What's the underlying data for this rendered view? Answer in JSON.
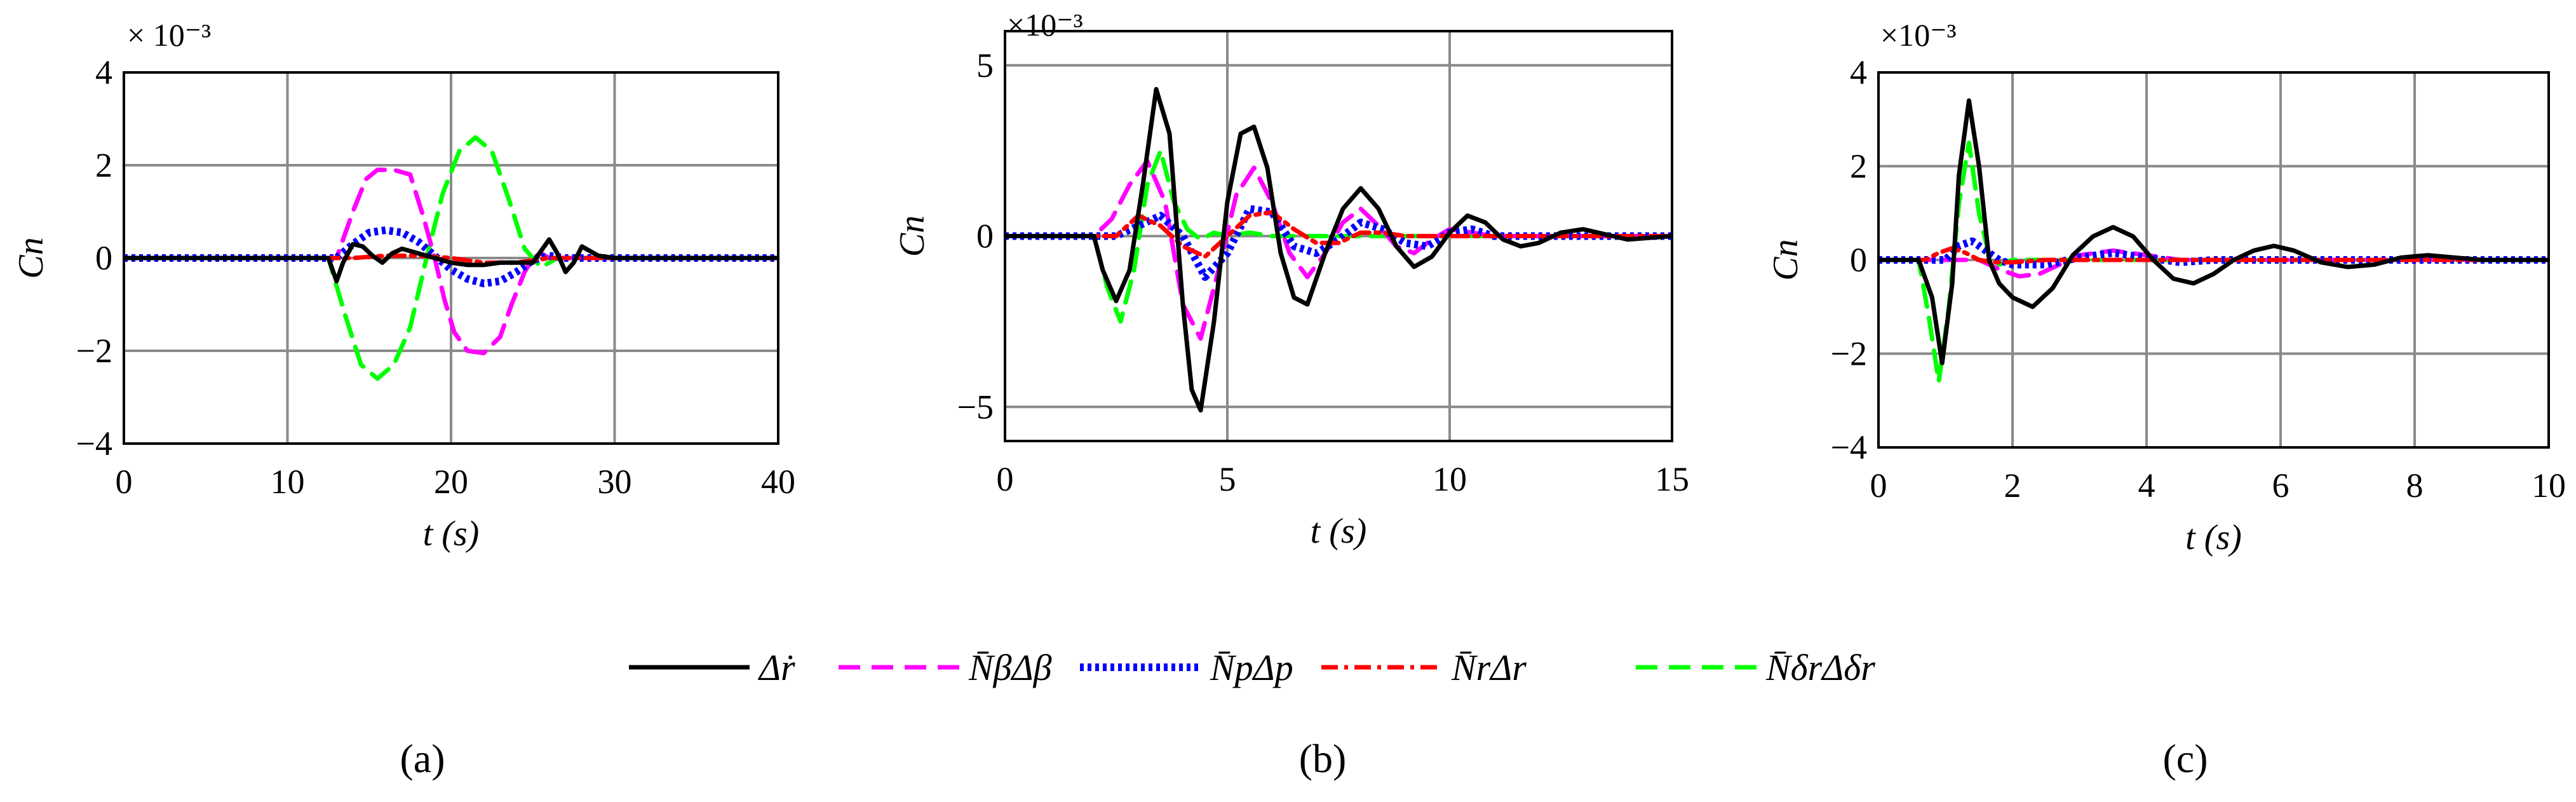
{
  "figure": {
    "legend": [
      {
        "label": "Δṙ",
        "color": "#000000",
        "dash": "solid"
      },
      {
        "label": "N̄βΔβ",
        "color": "#ff00ff",
        "dash": "dash"
      },
      {
        "label": "N̄pΔp",
        "color": "#0000ff",
        "dash": "dot"
      },
      {
        "label": "N̄rΔr",
        "color": "#ff0000",
        "dash": "dashdot"
      },
      {
        "label": "N̄δrΔδr",
        "color": "#00ff00",
        "dash": "dash"
      }
    ]
  },
  "chart_data": [
    {
      "type": "line",
      "panel_label": "(a)",
      "exponent_label": "× 10⁻³",
      "xlabel": "t (s)",
      "ylabel": "Cn",
      "xlim": [
        0,
        40
      ],
      "ylim": [
        -4,
        4
      ],
      "xticks": [
        0,
        10,
        20,
        30,
        40
      ],
      "yticks": [
        -4,
        -2,
        0,
        2,
        4
      ],
      "grid": true,
      "series": [
        {
          "name": "Δṙ",
          "x": [
            0,
            12.5,
            13.0,
            13.4,
            14.0,
            14.6,
            15.2,
            15.8,
            16.4,
            17.0,
            18.0,
            19.0,
            20.0,
            21.0,
            22.0,
            23.0,
            24.0,
            25.0,
            25.5,
            26.0,
            26.5,
            27.0,
            27.5,
            28.0,
            29.0,
            30.0,
            40
          ],
          "y": [
            0,
            0,
            -0.5,
            -0.1,
            0.3,
            0.25,
            0.05,
            -0.1,
            0.1,
            0.2,
            0.1,
            0,
            -0.1,
            -0.15,
            -0.15,
            -0.1,
            -0.1,
            -0.1,
            0.15,
            0.4,
            0.1,
            -0.3,
            -0.1,
            0.25,
            0.05,
            0,
            0
          ]
        },
        {
          "name": "N̄βΔβ",
          "x": [
            0,
            13.0,
            14.0,
            14.8,
            15.5,
            16.5,
            17.5,
            18.3,
            19.0,
            19.6,
            20.2,
            21.0,
            22.0,
            23.0,
            23.7,
            24.5,
            25.0,
            25.5,
            26.0,
            40
          ],
          "y": [
            0,
            0,
            1.0,
            1.7,
            1.9,
            1.9,
            1.8,
            0.9,
            0,
            -0.9,
            -1.6,
            -2.0,
            -2.05,
            -1.7,
            -1.0,
            -0.3,
            0.0,
            0.1,
            0,
            0
          ]
        },
        {
          "name": "N̄pΔp",
          "x": [
            0,
            13.0,
            14.0,
            15.0,
            16.0,
            17.0,
            18.0,
            19.0,
            20.0,
            21.0,
            22.0,
            23.0,
            24.0,
            25.0,
            26.0,
            27.0,
            40
          ],
          "y": [
            0,
            0,
            0.3,
            0.55,
            0.6,
            0.55,
            0.35,
            0.05,
            -0.25,
            -0.45,
            -0.55,
            -0.5,
            -0.3,
            -0.05,
            0.05,
            0,
            0
          ]
        },
        {
          "name": "N̄rΔr",
          "x": [
            0,
            14.0,
            16.0,
            18.0,
            20.0,
            22.0,
            24.0,
            26.0,
            28.0,
            40
          ],
          "y": [
            0,
            0,
            0.05,
            0.05,
            0,
            -0.1,
            -0.1,
            0,
            0,
            0
          ]
        },
        {
          "name": "N̄δrΔδr",
          "x": [
            0,
            12.5,
            13.5,
            14.5,
            15.5,
            16.5,
            17.5,
            18.5,
            19.5,
            20.5,
            21.5,
            22.5,
            23.5,
            24.5,
            25.5,
            26.5,
            40
          ],
          "y": [
            0,
            0,
            -1.2,
            -2.3,
            -2.6,
            -2.3,
            -1.5,
            0,
            1.4,
            2.3,
            2.6,
            2.3,
            1.3,
            0.2,
            -0.2,
            0,
            0
          ]
        }
      ]
    },
    {
      "type": "line",
      "panel_label": "(b)",
      "exponent_label": "×10⁻³",
      "xlabel": "t (s)",
      "ylabel": "Cn",
      "xlim": [
        0,
        15
      ],
      "ylim": [
        -6,
        6
      ],
      "xticks": [
        0,
        5,
        10,
        15
      ],
      "yticks": [
        -5,
        0,
        5
      ],
      "grid": true,
      "series": [
        {
          "name": "Δṙ",
          "x": [
            0,
            2.0,
            2.2,
            2.5,
            2.8,
            3.1,
            3.4,
            3.7,
            4.0,
            4.2,
            4.4,
            4.7,
            5.0,
            5.3,
            5.6,
            5.9,
            6.2,
            6.5,
            6.8,
            7.2,
            7.6,
            8.0,
            8.4,
            8.8,
            9.2,
            9.6,
            10.0,
            10.4,
            10.8,
            11.2,
            11.6,
            12.0,
            12.5,
            13.0,
            13.5,
            14.0,
            15.0
          ],
          "y": [
            0,
            0,
            -1.0,
            -1.9,
            -1.0,
            1.5,
            4.3,
            3.0,
            -2.0,
            -4.5,
            -5.1,
            -2.5,
            1.0,
            3.0,
            3.2,
            2.0,
            -0.5,
            -1.8,
            -2.0,
            -0.5,
            0.8,
            1.4,
            0.8,
            -0.3,
            -0.9,
            -0.6,
            0.1,
            0.6,
            0.4,
            -0.1,
            -0.3,
            -0.2,
            0.1,
            0.2,
            0.05,
            -0.1,
            0
          ]
        },
        {
          "name": "N̄βΔβ",
          "x": [
            0,
            2.0,
            2.4,
            2.8,
            3.2,
            3.6,
            4.0,
            4.4,
            4.8,
            5.2,
            5.6,
            6.0,
            6.4,
            6.8,
            7.2,
            7.6,
            8.0,
            8.4,
            8.8,
            9.2,
            9.6,
            10.0,
            10.5,
            11.0,
            15.0
          ],
          "y": [
            0,
            0,
            0.5,
            1.5,
            2.2,
            1.0,
            -2.0,
            -3.0,
            -1.0,
            1.2,
            2.0,
            1.0,
            -0.5,
            -1.2,
            -0.5,
            0.4,
            0.8,
            0.3,
            -0.3,
            -0.5,
            -0.1,
            0.2,
            0.1,
            0,
            0
          ]
        },
        {
          "name": "N̄pΔp",
          "x": [
            0,
            2.5,
            3.0,
            3.5,
            4.0,
            4.5,
            5.0,
            5.5,
            6.0,
            6.5,
            7.0,
            7.5,
            8.0,
            8.5,
            9.0,
            9.5,
            10.0,
            10.5,
            11.0,
            15.0
          ],
          "y": [
            0,
            0,
            0.3,
            0.6,
            0,
            -1.2,
            -0.5,
            0.8,
            0.7,
            -0.3,
            -0.5,
            -0.1,
            0.4,
            0.2,
            -0.2,
            -0.3,
            0.1,
            0.2,
            0,
            0
          ]
        },
        {
          "name": "N̄rΔr",
          "x": [
            0,
            2.5,
            3.0,
            3.5,
            4.0,
            4.5,
            5.0,
            5.5,
            6.0,
            6.5,
            7.0,
            7.5,
            8.0,
            8.5,
            9.0,
            10.0,
            15.0
          ],
          "y": [
            0,
            0,
            0.6,
            0.3,
            -0.3,
            -0.6,
            0,
            0.6,
            0.7,
            0.2,
            -0.2,
            -0.2,
            0.1,
            0.1,
            0,
            0,
            0
          ]
        },
        {
          "name": "N̄δrΔδr",
          "x": [
            0,
            2.0,
            2.3,
            2.6,
            2.9,
            3.2,
            3.5,
            3.8,
            4.1,
            4.4,
            4.7,
            5.0,
            5.5,
            6.0,
            6.5,
            7.0,
            15.0
          ],
          "y": [
            0,
            0,
            -1.5,
            -2.5,
            -1.0,
            1.5,
            2.5,
            1.0,
            0.2,
            -0.1,
            0.1,
            0,
            0.1,
            0,
            0,
            0,
            0
          ]
        }
      ]
    },
    {
      "type": "line",
      "panel_label": "(c)",
      "exponent_label": "×10⁻³",
      "xlabel": "t (s)",
      "ylabel": "Cn",
      "xlim": [
        0,
        10
      ],
      "ylim": [
        -4,
        4
      ],
      "xticks": [
        0,
        2,
        4,
        6,
        8,
        10
      ],
      "yticks": [
        -4,
        -2,
        0,
        2,
        4
      ],
      "grid": true,
      "series": [
        {
          "name": "Δṙ",
          "x": [
            0,
            0.6,
            0.8,
            0.95,
            1.1,
            1.2,
            1.35,
            1.5,
            1.65,
            1.8,
            2.0,
            2.3,
            2.6,
            2.9,
            3.2,
            3.5,
            3.8,
            4.1,
            4.4,
            4.7,
            5.0,
            5.3,
            5.6,
            5.9,
            6.2,
            6.6,
            7.0,
            7.4,
            7.8,
            8.2,
            8.6,
            9.0,
            9.5,
            10.0
          ],
          "y": [
            0,
            0,
            -0.8,
            -2.2,
            -0.5,
            1.8,
            3.4,
            2.0,
            0,
            -0.5,
            -0.8,
            -1.0,
            -0.6,
            0.1,
            0.5,
            0.7,
            0.5,
            0,
            -0.4,
            -0.5,
            -0.3,
            0,
            0.2,
            0.3,
            0.2,
            -0.05,
            -0.15,
            -0.1,
            0.05,
            0.1,
            0.05,
            0,
            0,
            0
          ]
        },
        {
          "name": "N̄βΔβ",
          "x": [
            0,
            1.5,
            1.8,
            2.1,
            2.4,
            2.7,
            3.0,
            3.5,
            4.0,
            4.5,
            5.0,
            10.0
          ],
          "y": [
            0,
            0,
            -0.2,
            -0.35,
            -0.3,
            -0.1,
            0.1,
            0.2,
            0.1,
            0,
            0,
            0
          ]
        },
        {
          "name": "N̄pΔp",
          "x": [
            0,
            1.0,
            1.2,
            1.4,
            1.6,
            1.8,
            2.0,
            2.5,
            3.0,
            3.5,
            4.0,
            4.5,
            5.0,
            10.0
          ],
          "y": [
            0,
            0,
            0.3,
            0.4,
            0.2,
            0,
            -0.1,
            -0.1,
            0.05,
            0.15,
            0.05,
            -0.05,
            0,
            0
          ]
        },
        {
          "name": "N̄rΔr",
          "x": [
            0,
            0.7,
            0.9,
            1.1,
            1.3,
            1.5,
            1.7,
            2.0,
            2.5,
            3.0,
            10.0
          ],
          "y": [
            0,
            0,
            0.15,
            0.25,
            0.15,
            0,
            -0.05,
            -0.05,
            0,
            0,
            0
          ]
        },
        {
          "name": "N̄δrΔδr",
          "x": [
            0,
            0.6,
            0.75,
            0.9,
            1.05,
            1.2,
            1.35,
            1.5,
            1.65,
            1.8,
            2.0,
            2.5,
            10.0
          ],
          "y": [
            0,
            0,
            -1.2,
            -2.6,
            -1.0,
            1.2,
            2.5,
            1.0,
            0.1,
            -0.1,
            0,
            0,
            0
          ]
        }
      ]
    }
  ]
}
